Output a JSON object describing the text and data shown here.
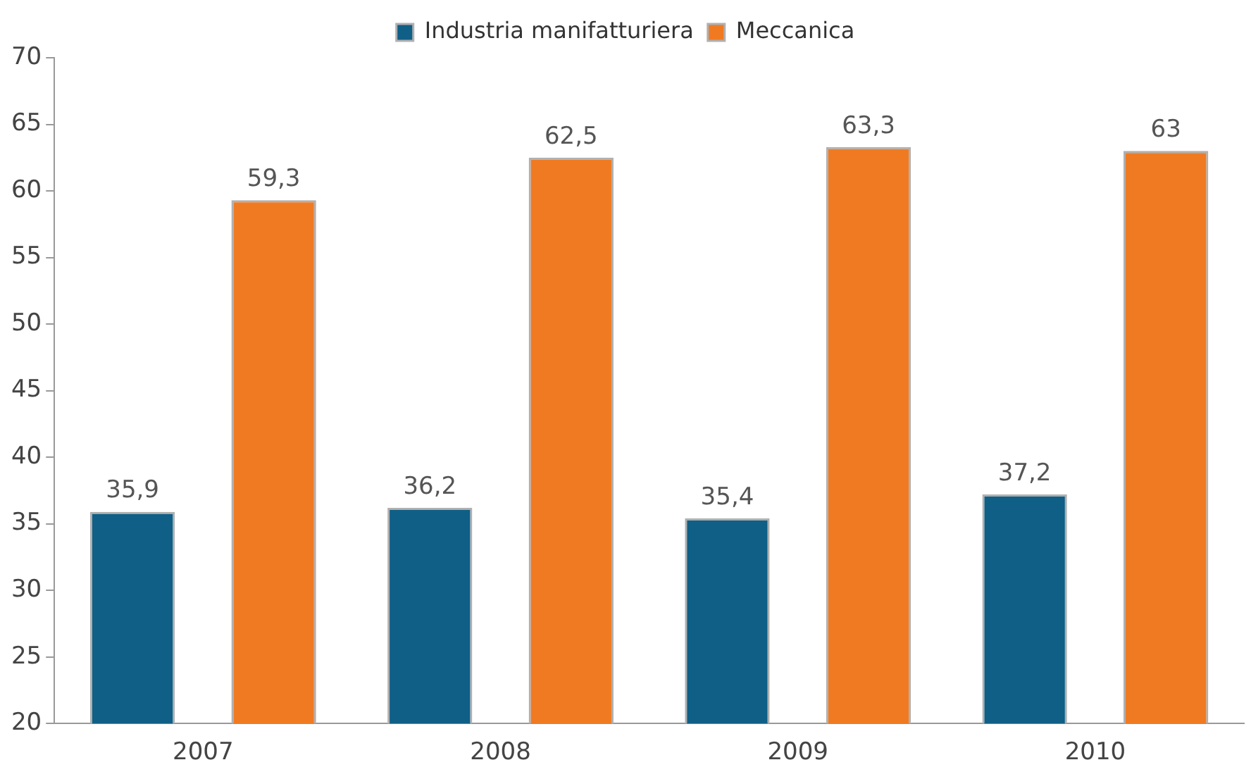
{
  "chart_data": {
    "type": "bar",
    "categories": [
      "2007",
      "2008",
      "2009",
      "2010"
    ],
    "series": [
      {
        "name": "Industria manifatturiera",
        "color": "#0f5f86",
        "values": [
          35.9,
          36.2,
          35.4,
          37.2
        ],
        "value_labels": [
          "35,9",
          "36,2",
          "35,4",
          "37,2"
        ]
      },
      {
        "name": "Meccanica",
        "color": "#f07a22",
        "values": [
          59.3,
          62.5,
          63.3,
          63
        ],
        "value_labels": [
          "59,3",
          "62,5",
          "63,3",
          "63"
        ]
      }
    ],
    "ylim": [
      20,
      70
    ],
    "yticks": [
      20,
      25,
      30,
      35,
      40,
      45,
      50,
      55,
      60,
      65,
      70
    ],
    "grid": false,
    "legend": "top"
  }
}
